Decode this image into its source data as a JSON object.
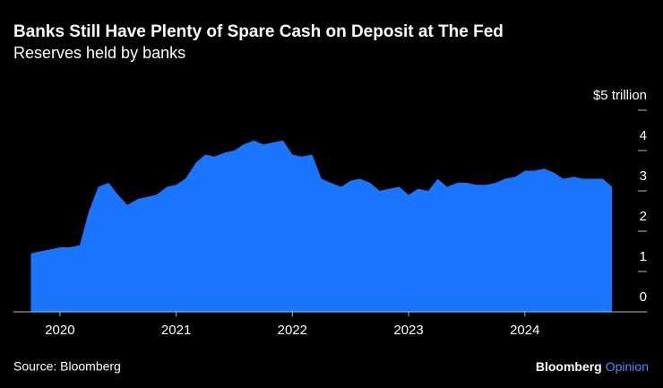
{
  "chart_data": {
    "type": "area",
    "title": "Banks Still Have Plenty of Spare Cash on Deposit at The Fed",
    "subtitle": "Reserves held by banks",
    "source": "Source: Bloomberg",
    "brand": "Bloomberg",
    "brand_suffix": "Opinion",
    "color": "#1a75ff",
    "x": [
      2019.75,
      2019.83,
      2019.92,
      2020.0,
      2020.08,
      2020.17,
      2020.25,
      2020.33,
      2020.42,
      2020.5,
      2020.58,
      2020.67,
      2020.75,
      2020.83,
      2020.92,
      2021.0,
      2021.08,
      2021.17,
      2021.25,
      2021.33,
      2021.42,
      2021.5,
      2021.58,
      2021.67,
      2021.75,
      2021.83,
      2021.92,
      2022.0,
      2022.08,
      2022.17,
      2022.25,
      2022.33,
      2022.42,
      2022.5,
      2022.58,
      2022.67,
      2022.75,
      2022.83,
      2022.92,
      2023.0,
      2023.08,
      2023.17,
      2023.25,
      2023.33,
      2023.42,
      2023.5,
      2023.58,
      2023.67,
      2023.75,
      2023.83,
      2023.92,
      2024.0,
      2024.08,
      2024.17,
      2024.25,
      2024.33,
      2024.42,
      2024.5,
      2024.58,
      2024.67,
      2024.75
    ],
    "values": [
      1.45,
      1.5,
      1.55,
      1.6,
      1.6,
      1.65,
      2.5,
      3.1,
      3.2,
      2.9,
      2.65,
      2.8,
      2.85,
      2.9,
      3.1,
      3.15,
      3.3,
      3.7,
      3.9,
      3.85,
      3.95,
      4.0,
      4.15,
      4.25,
      4.15,
      4.2,
      4.25,
      3.9,
      3.85,
      3.9,
      3.3,
      3.2,
      3.1,
      3.25,
      3.3,
      3.2,
      3.0,
      3.05,
      3.1,
      2.9,
      3.05,
      3.0,
      3.3,
      3.1,
      3.2,
      3.2,
      3.15,
      3.15,
      3.2,
      3.3,
      3.35,
      3.5,
      3.5,
      3.55,
      3.45,
      3.3,
      3.35,
      3.3,
      3.3,
      3.3,
      3.1
    ],
    "xlim": [
      2019.6,
      2025.05
    ],
    "xticks": [
      2020,
      2021,
      2022,
      2023,
      2024
    ],
    "ylim": [
      0,
      5
    ],
    "yticks": [
      0,
      1,
      2,
      3,
      4,
      {
        "value": 5,
        "label": "$5 trillion"
      }
    ]
  }
}
